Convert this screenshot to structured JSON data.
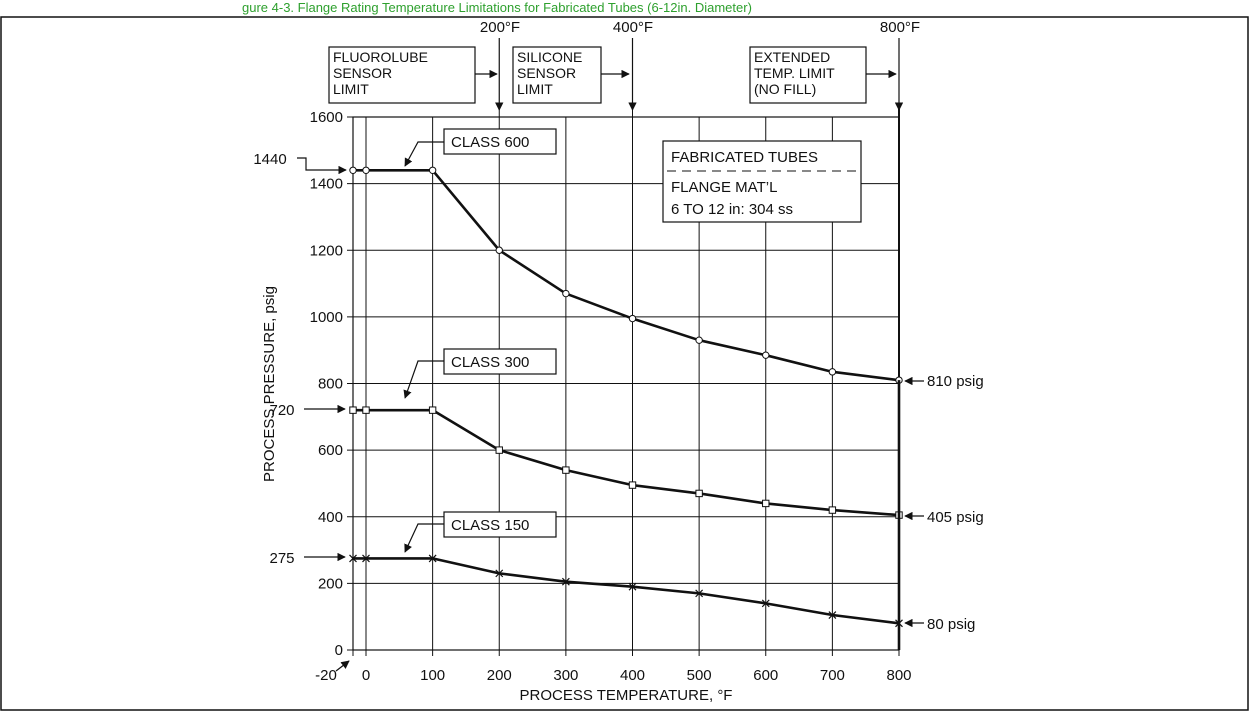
{
  "header_caption": "gure 4-3. Flange Rating Temperature Limitations for Fabricated Tubes (6-12in. Diameter)",
  "chart_data": {
    "type": "line",
    "xlabel": "PROCESS TEMPERATURE, °F",
    "ylabel": "PROCESS PRESSURE, psig",
    "xlim": [
      -20,
      800
    ],
    "ylim": [
      0,
      1600
    ],
    "x_ticks": [
      "-20",
      "0",
      "100",
      "200",
      "300",
      "400",
      "500",
      "600",
      "700",
      "800"
    ],
    "x_tick_values": [
      -20,
      0,
      100,
      200,
      300,
      400,
      500,
      600,
      700,
      800
    ],
    "y_ticks": [
      "0",
      "200",
      "400",
      "600",
      "800",
      "1000",
      "1200",
      "1400",
      "1600"
    ],
    "y_tick_values": [
      0,
      200,
      400,
      600,
      800,
      1000,
      1200,
      1400,
      1600
    ],
    "grid": true,
    "series": [
      {
        "name": "CLASS 600",
        "marker": "circle",
        "points": [
          [
            -20,
            1440
          ],
          [
            0,
            1440
          ],
          [
            100,
            1440
          ],
          [
            200,
            1200
          ],
          [
            300,
            1070
          ],
          [
            400,
            995
          ],
          [
            500,
            930
          ],
          [
            600,
            885
          ],
          [
            700,
            835
          ],
          [
            800,
            810
          ]
        ]
      },
      {
        "name": "CLASS 300",
        "marker": "square",
        "points": [
          [
            -20,
            720
          ],
          [
            0,
            720
          ],
          [
            100,
            720
          ],
          [
            200,
            600
          ],
          [
            300,
            540
          ],
          [
            400,
            495
          ],
          [
            500,
            470
          ],
          [
            600,
            440
          ],
          [
            700,
            420
          ],
          [
            800,
            405
          ]
        ]
      },
      {
        "name": "CLASS 150",
        "marker": "x",
        "points": [
          [
            -20,
            275
          ],
          [
            0,
            275
          ],
          [
            100,
            275
          ],
          [
            200,
            230
          ],
          [
            300,
            205
          ],
          [
            400,
            190
          ],
          [
            500,
            170
          ],
          [
            600,
            140
          ],
          [
            700,
            105
          ],
          [
            800,
            80
          ]
        ]
      }
    ],
    "endpoint_labels": [
      "810 psig",
      "405 psig",
      "80 psig"
    ],
    "start_labels": [
      "1440",
      "720",
      "275"
    ],
    "temperature_limits": [
      {
        "label": "200°F",
        "x": 200,
        "region_text": [
          "FLUOROLUBE",
          "SENSOR",
          "LIMIT"
        ]
      },
      {
        "label": "400°F",
        "x": 400,
        "region_text": [
          "SILICONE",
          "SENSOR",
          "LIMIT"
        ]
      },
      {
        "label": "800°F",
        "x": 800,
        "region_text": [
          "EXTENDED",
          "TEMP. LIMIT",
          "(NO FILL)"
        ]
      }
    ],
    "annotation_box": {
      "title": "FABRICATED TUBES",
      "lines": [
        "FLANGE MAT’L",
        "6 TO 12 in: 304 ss"
      ]
    }
  }
}
